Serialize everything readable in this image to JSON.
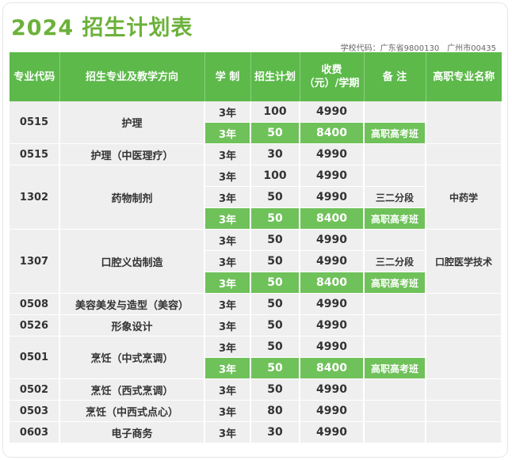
{
  "title": "2024 招生计划表",
  "school_code_note": "学校代码：广东省9800130　广州市00435",
  "headers": [
    "专业代码",
    "招生专业及教学方向",
    "学 制",
    "招生计划",
    "收费（元）/学期",
    "备 注",
    "高职专业名称"
  ],
  "header_fee_line1": "收费",
  "header_fee_line2": "（元）/学期",
  "groups": [
    {
      "code": "0515",
      "major": "护理",
      "rows": [
        {
          "years": "3年",
          "plan": "100",
          "fee": "4990",
          "note": "",
          "green": false
        },
        {
          "years": "3年",
          "plan": "50",
          "fee": "8400",
          "note": "高职高考班",
          "green": true
        }
      ],
      "higher": ""
    },
    {
      "code": "0515",
      "major": "护理（中医理疗）",
      "rows": [
        {
          "years": "3年",
          "plan": "30",
          "fee": "4990",
          "note": "",
          "green": false
        }
      ],
      "higher": ""
    },
    {
      "code": "1302",
      "major": "药物制剂",
      "rows": [
        {
          "years": "3年",
          "plan": "100",
          "fee": "4990",
          "note": "",
          "green": false
        },
        {
          "years": "3年",
          "plan": "50",
          "fee": "4990",
          "note": "三二分段",
          "green": false
        },
        {
          "years": "3年",
          "plan": "50",
          "fee": "8400",
          "note": "高职高考班",
          "green": true
        }
      ],
      "higher": "中药学"
    },
    {
      "code": "1307",
      "major": "口腔义齿制造",
      "rows": [
        {
          "years": "3年",
          "plan": "50",
          "fee": "4990",
          "note": "",
          "green": false
        },
        {
          "years": "3年",
          "plan": "50",
          "fee": "4990",
          "note": "三二分段",
          "green": false
        },
        {
          "years": "3年",
          "plan": "50",
          "fee": "8400",
          "note": "高职高考班",
          "green": true
        }
      ],
      "higher": "口腔医学技术"
    },
    {
      "code": "0508",
      "major": "美容美发与造型（美容）",
      "rows": [
        {
          "years": "3年",
          "plan": "50",
          "fee": "4990",
          "note": "",
          "green": false
        }
      ],
      "higher": ""
    },
    {
      "code": "0526",
      "major": "形象设计",
      "rows": [
        {
          "years": "3年",
          "plan": "50",
          "fee": "4990",
          "note": "",
          "green": false
        }
      ],
      "higher": ""
    },
    {
      "code": "0501",
      "major": "烹饪（中式烹调）",
      "rows": [
        {
          "years": "3年",
          "plan": "50",
          "fee": "4990",
          "note": "",
          "green": false
        },
        {
          "years": "3年",
          "plan": "50",
          "fee": "8400",
          "note": "高职高考班",
          "green": true
        }
      ],
      "higher": ""
    },
    {
      "code": "0502",
      "major": "烹饪（西式烹调）",
      "rows": [
        {
          "years": "3年",
          "plan": "50",
          "fee": "4990",
          "note": "",
          "green": false
        }
      ],
      "higher": ""
    },
    {
      "code": "0503",
      "major": "烹饪（中西式点心）",
      "rows": [
        {
          "years": "3年",
          "plan": "80",
          "fee": "4990",
          "note": "",
          "green": false
        }
      ],
      "higher": ""
    },
    {
      "code": "0603",
      "major": "电子商务",
      "rows": [
        {
          "years": "3年",
          "plan": "30",
          "fee": "4990",
          "note": "",
          "green": false
        }
      ],
      "higher": ""
    }
  ]
}
